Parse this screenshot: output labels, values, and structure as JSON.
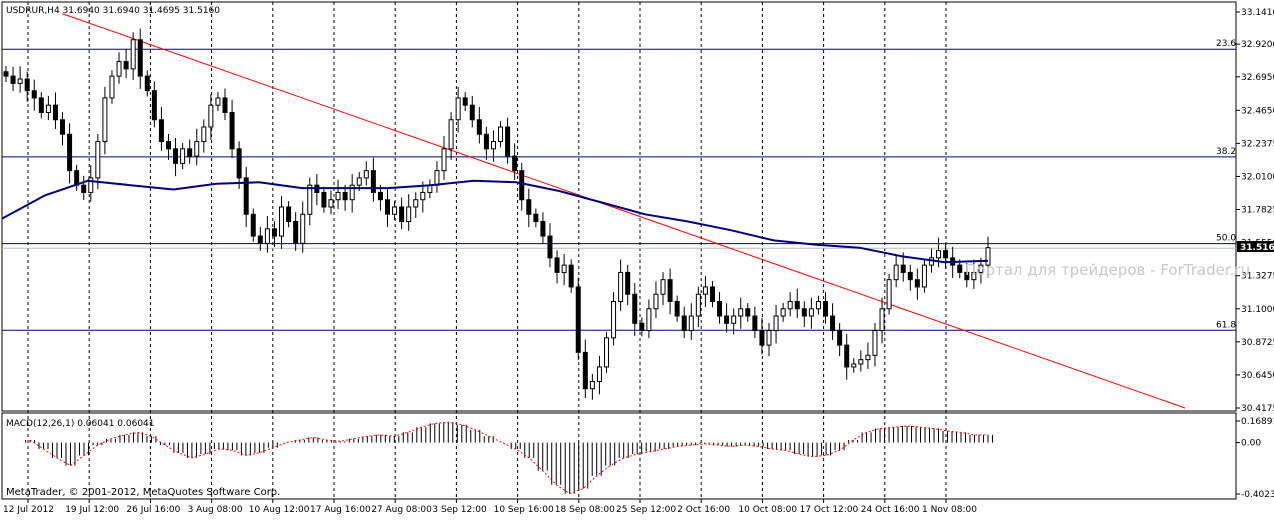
{
  "header": {
    "symbol_info": "USDRUR,H4  31.6940 31.6940 31.4695 31.5160",
    "macd_label": "MACD(12,26,1) 0.06041 0.06041",
    "watermark": "Портал для трейдеров - ForTrader.ru",
    "copyright": "MetaTrader, © 2001-2012, MetaQuotes Software Corp."
  },
  "chart_data": [
    {
      "type": "candlestick",
      "symbol": "USDRUR",
      "timeframe": "H4",
      "ylim": [
        30.4175,
        33.141
      ],
      "y_ticks": [
        "33.1410",
        "32.9200",
        "32.6950",
        "32.4650",
        "32.2375",
        "32.0100",
        "31.7825",
        "31.5550",
        "31.3275",
        "31.1000",
        "30.8725",
        "30.6450",
        "30.4175"
      ],
      "x_ticks": [
        "12 Jul 2012",
        "19 Jul 12:00",
        "26 Jul 16:00",
        "3 Aug 08:00",
        "10 Aug 12:00",
        "17 Aug 16:00",
        "27 Aug 08:00",
        "3 Sep 12:00",
        "10 Sep 16:00",
        "18 Sep 08:00",
        "25 Sep 12:00",
        "2 Oct 16:00",
        "10 Oct 08:00",
        "17 Oct 12:00",
        "24 Oct 16:00",
        "1 Nov 08:00"
      ],
      "current_price": "31.5160",
      "closes": [
        32.7,
        32.65,
        32.68,
        32.6,
        32.55,
        32.45,
        32.5,
        32.4,
        32.3,
        32.05,
        31.95,
        31.9,
        32.0,
        32.25,
        32.55,
        32.7,
        32.8,
        32.75,
        32.95,
        32.7,
        32.6,
        32.4,
        32.25,
        32.2,
        32.1,
        32.2,
        32.15,
        32.25,
        32.35,
        32.5,
        32.55,
        32.45,
        32.2,
        32.0,
        31.75,
        31.6,
        31.55,
        31.65,
        31.6,
        31.8,
        31.7,
        31.55,
        31.75,
        31.95,
        31.9,
        31.8,
        31.85,
        31.9,
        31.85,
        31.95,
        32.0,
        32.05,
        31.9,
        31.85,
        31.75,
        31.8,
        31.7,
        31.8,
        31.85,
        31.9,
        31.95,
        32.05,
        32.2,
        32.4,
        32.55,
        32.5,
        32.4,
        32.3,
        32.2,
        32.25,
        32.35,
        32.15,
        32.05,
        31.85,
        31.75,
        31.7,
        31.6,
        31.45,
        31.35,
        31.4,
        31.25,
        30.8,
        30.55,
        30.6,
        30.7,
        30.9,
        31.15,
        31.35,
        31.2,
        31.0,
        30.95,
        31.1,
        31.2,
        31.3,
        31.15,
        31.05,
        30.95,
        31.05,
        31.2,
        31.25,
        31.15,
        31.05,
        31.0,
        31.05,
        31.1,
        31.05,
        30.95,
        30.85,
        30.95,
        31.05,
        31.1,
        31.15,
        31.1,
        31.05,
        31.1,
        31.15,
        31.05,
        30.95,
        30.85,
        30.7,
        30.72,
        30.75,
        30.78,
        30.95,
        31.1,
        31.3,
        31.4,
        31.35,
        31.3,
        31.25,
        31.4,
        31.45,
        31.5,
        31.45,
        31.4,
        31.35,
        31.3,
        31.35,
        31.4,
        31.52
      ],
      "ma_values": [
        31.72,
        31.88,
        31.98,
        31.95,
        31.92,
        31.96,
        31.97,
        31.93,
        31.93,
        31.93,
        31.95,
        31.98,
        31.97,
        31.91,
        31.83,
        31.75,
        31.7,
        31.64,
        31.57,
        31.54,
        31.52,
        31.46,
        31.42,
        31.43
      ],
      "macd_ylim": [
        -0.40234,
        0.16891
      ],
      "macd_y_ticks": [
        "0.16891",
        "0.00",
        "-0.40234"
      ],
      "macd_values": [
        0.02,
        -0.05,
        -0.12,
        -0.18,
        -0.1,
        -0.02,
        0.03,
        0.06,
        0.08,
        0.05,
        -0.02,
        -0.08,
        -0.12,
        -0.09,
        -0.05,
        -0.06,
        -0.1,
        -0.08,
        -0.04,
        0.0,
        0.02,
        0.04,
        0.02,
        0.01,
        0.03,
        0.05,
        0.06,
        0.05,
        0.08,
        0.12,
        0.15,
        0.16,
        0.14,
        0.1,
        0.05,
        0.0,
        -0.05,
        -0.12,
        -0.22,
        -0.33,
        -0.4,
        -0.36,
        -0.26,
        -0.18,
        -0.12,
        -0.09,
        -0.07,
        -0.05,
        -0.03,
        -0.02,
        -0.01,
        -0.02,
        -0.03,
        -0.02,
        -0.03,
        -0.05,
        -0.06,
        -0.09,
        -0.11,
        -0.1,
        -0.06,
        0.02,
        0.08,
        0.11,
        0.12,
        0.13,
        0.12,
        0.11,
        0.09,
        0.08,
        0.06,
        0.06
      ],
      "fib_levels": [
        {
          "label": "23.6",
          "value": 32.885
        },
        {
          "label": "38.2",
          "value": 32.145
        },
        {
          "label": "50.0",
          "value": 31.548
        },
        {
          "label": "61.8",
          "value": 30.952
        }
      ],
      "trendline": {
        "start": [
          0,
          33.13
        ],
        "end": [
          1,
          30.4175
        ]
      },
      "colors": {
        "candle": "#000000",
        "ma": "#000080",
        "fib": "#000080",
        "trendline": "#ff0000",
        "macd_bar": "#000000",
        "macd_signal": "#ff0000",
        "grid": "#000000"
      }
    }
  ]
}
